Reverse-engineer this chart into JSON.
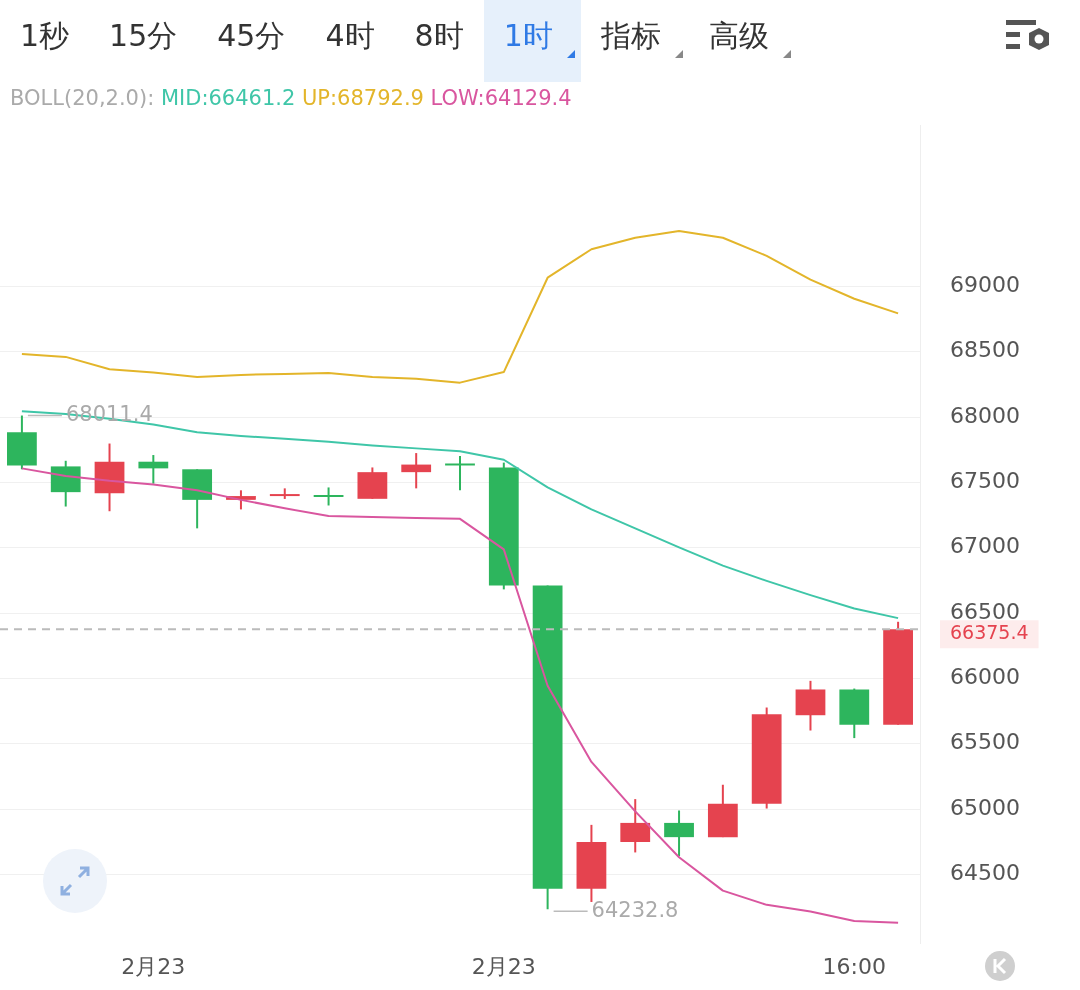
{
  "chart_data": {
    "type": "candlestick",
    "legend_title": "BOLL(20,2.0):",
    "legend": "top",
    "grid": "y",
    "categories": [
      null,
      null,
      null,
      "2月23",
      null,
      null,
      null,
      null,
      null,
      null,
      null,
      "2月23",
      null,
      null,
      null,
      null,
      null,
      null,
      null,
      "16:00",
      null
    ],
    "ylim": [
      63975,
      70233
    ],
    "yticks": [
      64500,
      65000,
      65500,
      66000,
      66500,
      67000,
      67500,
      68000,
      68500,
      69000
    ],
    "series": [
      {
        "colors": [
          "#2db55d",
          "#2db55d",
          "#e5434f",
          "#2db55d",
          "#2db55d",
          "#e5434f",
          "#e5434f",
          "#2db55d",
          "#e5434f",
          "#e5434f",
          "#2db55d",
          "#2db55d",
          "#2db55d",
          "#e5434f",
          "#e5434f",
          "#2db55d",
          "#e5434f",
          "#e5434f",
          "#e5434f",
          "#2db55d",
          "#e5434f"
        ],
        "ohlc": [
          [
            67884,
            68011.4,
            67600,
            67629
          ],
          [
            67622,
            67665,
            67315,
            67425
          ],
          [
            67417,
            67797,
            67279,
            67658
          ],
          [
            67658,
            67709,
            67490,
            67607
          ],
          [
            67600,
            67600,
            67148,
            67366
          ],
          [
            67366,
            67439,
            67293,
            67395
          ],
          [
            67395,
            67454,
            67373,
            67403
          ],
          [
            67395,
            67461,
            67323,
            67388
          ],
          [
            67374,
            67614,
            67374,
            67578
          ],
          [
            67578,
            67724,
            67454,
            67636
          ],
          [
            67636,
            67702,
            67439,
            67629
          ],
          [
            67614,
            67651,
            66681,
            66710
          ],
          [
            66710,
            66710,
            64232.8,
            64391
          ],
          [
            64391,
            64879,
            64289,
            64748
          ],
          [
            64748,
            65076,
            64668,
            64894
          ],
          [
            64894,
            64989,
            64639,
            64785
          ],
          [
            64785,
            65186,
            64785,
            65040
          ],
          [
            65040,
            65777,
            65004,
            65725
          ],
          [
            65718,
            65981,
            65601,
            65915
          ],
          [
            65915,
            65922,
            65543,
            65645
          ],
          [
            65645,
            66433,
            65645,
            66375.4
          ]
        ]
      },
      {
        "type": "line",
        "name": "MID:66461.2",
        "color": "#3fc6a8",
        "values": [
          68045,
          68023,
          67986,
          67943,
          67884,
          67855,
          67833,
          67811,
          67782,
          67760,
          67738,
          67673,
          67461,
          67293,
          67148,
          67002,
          66863,
          66746,
          66637,
          66535,
          66461.2
        ]
      },
      {
        "type": "line",
        "name": "UP:68792.9",
        "color": "#e3b52a",
        "values": [
          68482,
          68460,
          68366,
          68340,
          68307,
          68322,
          68330,
          68336,
          68307,
          68293,
          68263,
          68344,
          69066,
          69284,
          69372,
          69423,
          69372,
          69233,
          69051,
          68905,
          68792.9
        ]
      },
      {
        "type": "line",
        "name": "LOW:64129.4",
        "color": "#d9569f",
        "values": [
          67607,
          67549,
          67512,
          67483,
          67439,
          67366,
          67301,
          67242,
          67235,
          67228,
          67221,
          66987,
          65944,
          65361,
          64982,
          64631,
          64376,
          64267,
          64216,
          64143,
          64129.4
        ]
      }
    ],
    "ref_lines": [
      {
        "axis": "y",
        "value": 66375.4,
        "label": "66375.4",
        "color": "#bbbbbb",
        "line_style": "dashed"
      }
    ],
    "annotations": [
      "1秒",
      "15分",
      "45分",
      "4时",
      "8时",
      "1时",
      "指标",
      "高级",
      {
        "text": "68011.4",
        "y": 68011.4
      },
      "64232.8"
    ]
  }
}
